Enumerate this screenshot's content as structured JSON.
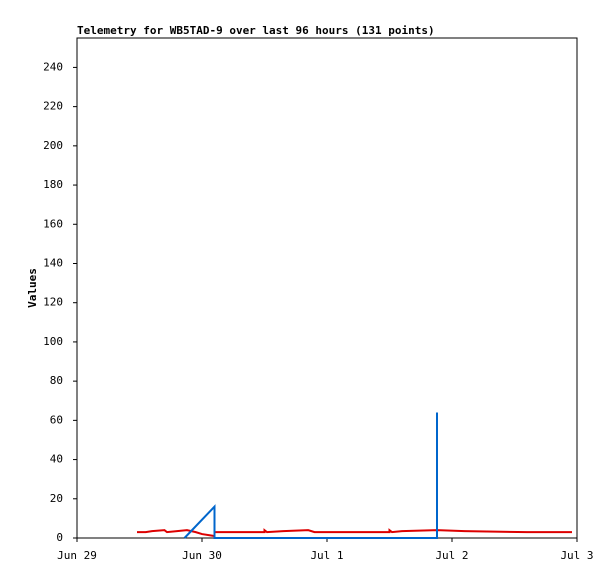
{
  "chart_data": {
    "type": "line",
    "title": "Telemetry for WB5TAD-9 over last 96 hours (131 points)",
    "y_label": "Values",
    "x": [],
    "xlim": [
      0,
      4
    ],
    "xticks": [
      {
        "value": 0,
        "label": "Jun 29"
      },
      {
        "value": 1,
        "label": "Jun 30"
      },
      {
        "value": 2,
        "label": "Jul 1"
      },
      {
        "value": 3,
        "label": "Jul 2"
      },
      {
        "value": 4,
        "label": "Jul 3"
      }
    ],
    "ylim": [
      0,
      255
    ],
    "yticks": [
      0,
      20,
      40,
      60,
      80,
      100,
      120,
      140,
      160,
      180,
      200,
      220,
      240
    ],
    "series": [
      {
        "color": "#dd0000",
        "x": [
          0.48,
          0.55,
          0.6,
          0.7,
          0.72,
          0.8,
          0.88,
          0.95,
          1.0,
          1.1,
          1.1,
          1.5,
          1.5,
          1.52,
          1.65,
          1.85,
          1.9,
          2.5,
          2.5,
          2.52,
          2.6,
          2.88,
          3.1,
          3.6,
          3.96
        ],
        "values": [
          3,
          3,
          3.5,
          4,
          3,
          3.5,
          4,
          3,
          2,
          1,
          3,
          3,
          4,
          3,
          3.5,
          4,
          3,
          3,
          4,
          3,
          3.5,
          4,
          3.5,
          3,
          3
        ]
      },
      {
        "color": "#0066cc",
        "x": [
          0.86,
          1.1,
          1.1,
          2.88,
          2.88,
          2.88
        ],
        "values": [
          0,
          16,
          0,
          0,
          64,
          0
        ]
      }
    ]
  }
}
